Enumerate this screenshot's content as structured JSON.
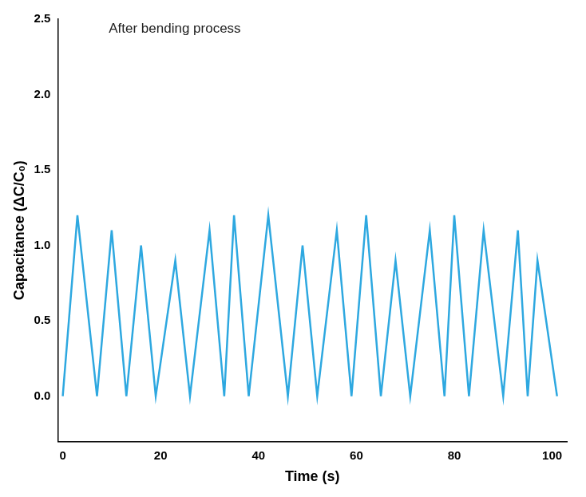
{
  "chart_data": {
    "type": "line",
    "annotation": "After bending process",
    "x_label": "Time (s)",
    "y_label": "Capacitance (ΔC/C₀)",
    "x": [
      0,
      3,
      7,
      10,
      13,
      16,
      19,
      23,
      26,
      30,
      33,
      35,
      38,
      42,
      46,
      49,
      52,
      56,
      59,
      62,
      65,
      68,
      71,
      75,
      78,
      80,
      83,
      86,
      90,
      93,
      95,
      97,
      101
    ],
    "values": [
      0,
      1.2,
      0,
      1.1,
      0,
      1.0,
      0,
      0.9,
      0,
      1.1,
      0,
      1.2,
      0,
      1.2,
      0,
      1.0,
      0,
      1.1,
      0,
      1.2,
      0,
      0.9,
      0,
      1.1,
      0,
      1.2,
      0,
      1.1,
      0,
      1.1,
      0,
      0.9,
      0
    ],
    "color": "#2ea8e0",
    "xlim": [
      -1,
      103
    ],
    "xticks": [
      0,
      20,
      40,
      60,
      80,
      100
    ],
    "ylim": [
      -0.3,
      2.5
    ],
    "yticks": [
      {
        "value": 0,
        "label": "0.0"
      },
      0.5,
      {
        "value": 1,
        "label": "1.0"
      },
      1.5,
      {
        "value": 2,
        "label": "2.0"
      },
      2.5
    ],
    "grid": false
  }
}
